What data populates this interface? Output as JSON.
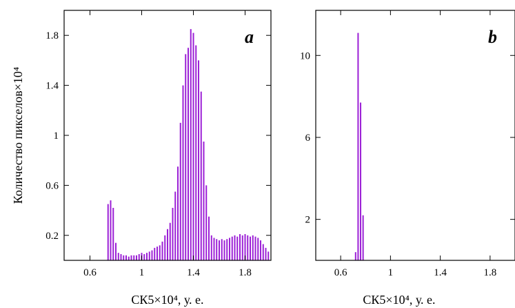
{
  "chart_data": [
    {
      "type": "bar",
      "panel_label": "a",
      "ylabel": "Количество пикселов×10⁴",
      "xlabel": "СК5×10⁴, у. е.",
      "xlim": [
        0.4,
        2.0
      ],
      "ylim": [
        0,
        2.0
      ],
      "x_ticks": [
        0.6,
        1.0,
        1.4,
        1.8
      ],
      "y_ticks": [
        0.2,
        0.6,
        1.0,
        1.4,
        1.8
      ],
      "bar_color": "#9b1fd6",
      "x": [
        0.74,
        0.76,
        0.78,
        0.8,
        0.82,
        0.84,
        0.86,
        0.88,
        0.9,
        0.92,
        0.94,
        0.96,
        0.98,
        1.0,
        1.02,
        1.04,
        1.06,
        1.08,
        1.1,
        1.12,
        1.14,
        1.16,
        1.18,
        1.2,
        1.22,
        1.24,
        1.26,
        1.28,
        1.3,
        1.32,
        1.34,
        1.36,
        1.38,
        1.4,
        1.42,
        1.44,
        1.46,
        1.48,
        1.5,
        1.52,
        1.54,
        1.56,
        1.58,
        1.6,
        1.62,
        1.64,
        1.66,
        1.68,
        1.7,
        1.72,
        1.74,
        1.76,
        1.78,
        1.8,
        1.82,
        1.84,
        1.86,
        1.88,
        1.9,
        1.92,
        1.94,
        1.96,
        1.98
      ],
      "values": [
        0.45,
        0.48,
        0.42,
        0.14,
        0.06,
        0.05,
        0.04,
        0.04,
        0.03,
        0.04,
        0.04,
        0.04,
        0.05,
        0.06,
        0.05,
        0.06,
        0.07,
        0.08,
        0.1,
        0.11,
        0.12,
        0.15,
        0.2,
        0.25,
        0.3,
        0.42,
        0.55,
        0.75,
        1.1,
        1.4,
        1.65,
        1.7,
        1.85,
        1.82,
        1.72,
        1.6,
        1.35,
        0.95,
        0.6,
        0.35,
        0.2,
        0.18,
        0.17,
        0.16,
        0.17,
        0.16,
        0.17,
        0.18,
        0.19,
        0.2,
        0.19,
        0.21,
        0.2,
        0.21,
        0.2,
        0.19,
        0.2,
        0.19,
        0.18,
        0.16,
        0.13,
        0.1,
        0.07
      ]
    },
    {
      "type": "bar",
      "panel_label": "b",
      "ylabel": "",
      "xlabel": "СК5×10⁴, у. е.",
      "xlim": [
        0.4,
        2.0
      ],
      "ylim": [
        0,
        12.2
      ],
      "x_ticks": [
        0.6,
        1.0,
        1.4,
        1.8
      ],
      "y_ticks": [
        2,
        6,
        10
      ],
      "bar_color": "#9b1fd6",
      "x": [
        0.72,
        0.74,
        0.76,
        0.78
      ],
      "values": [
        0.4,
        11.1,
        7.7,
        2.2
      ]
    }
  ]
}
